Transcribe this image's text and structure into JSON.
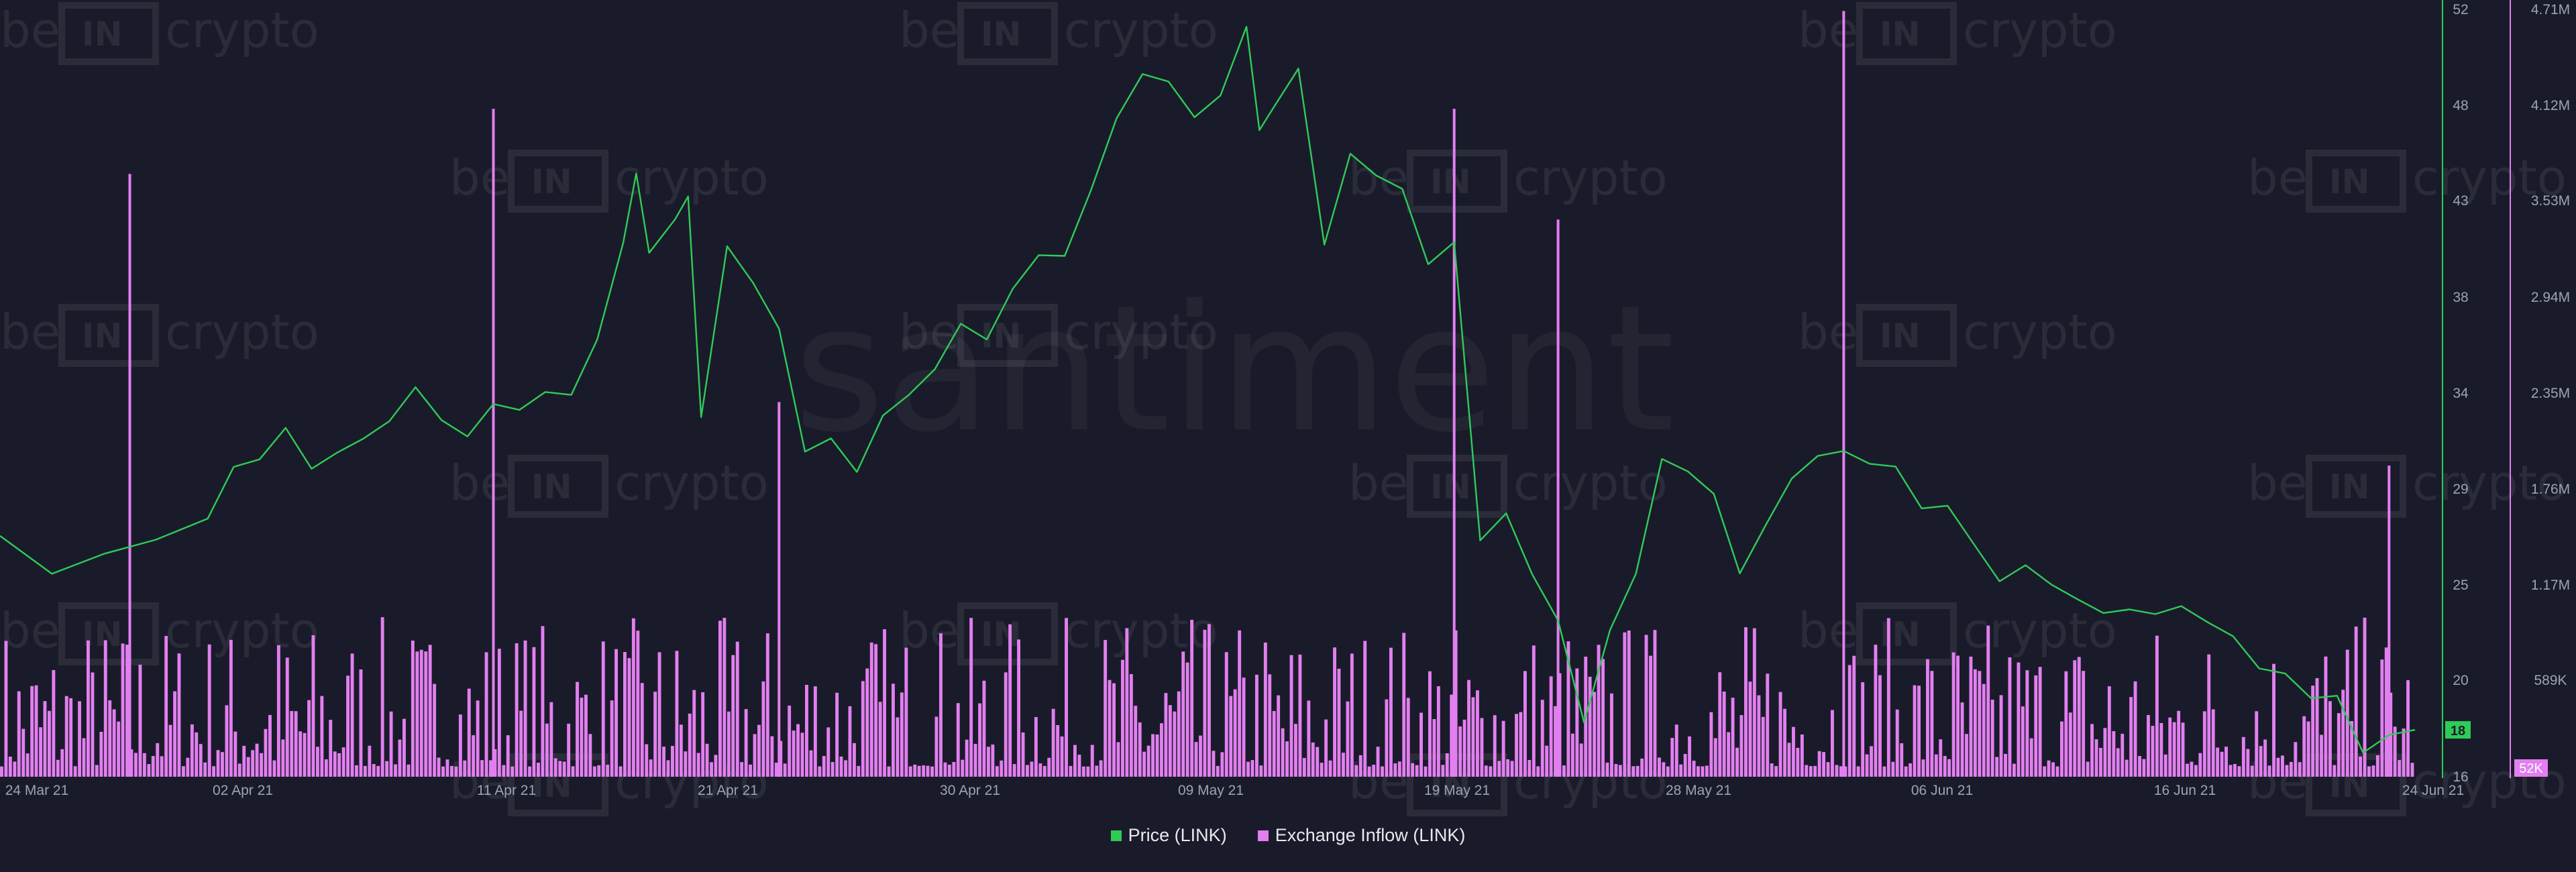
{
  "watermark": {
    "brand_left": "be",
    "brand_box": "IN",
    "brand_right": "crypto",
    "center": "santiment"
  },
  "legend": {
    "items": [
      {
        "label": "Price (LINK)",
        "color": "#2ecc57"
      },
      {
        "label": "Exchange Inflow (LINK)",
        "color": "#e27ff0"
      }
    ]
  },
  "price_axis": {
    "ticks": [
      "52",
      "48",
      "43",
      "38",
      "34",
      "29",
      "25",
      "20",
      "16"
    ],
    "current_label": "18"
  },
  "inflow_axis": {
    "ticks": [
      "4.71M",
      "4.12M",
      "3.53M",
      "2.94M",
      "2.35M",
      "1.76M",
      "1.17M",
      "589K"
    ],
    "current_label": "52K"
  },
  "chart_data": {
    "type": "line",
    "x_ticks": [
      "24 Mar 21",
      "02 Apr 21",
      "11 Apr 21",
      "21 Apr 21",
      "30 Apr 21",
      "09 May 21",
      "19 May 21",
      "28 May 21",
      "06 Jun 21",
      "16 Jun 21",
      "24 Jun 21"
    ],
    "x_range": [
      "2021-03-23",
      "2021-06-24"
    ],
    "series": [
      {
        "name": "Price (LINK)",
        "axis": "left",
        "color": "#2ecc57",
        "ylim": [
          16,
          52
        ],
        "points": [
          [
            "2021-03-23",
            27.3
          ],
          [
            "2021-03-25",
            25.6
          ],
          [
            "2021-03-27",
            26.6
          ],
          [
            "2021-03-29",
            27.3
          ],
          [
            "2021-03-31",
            28.3
          ],
          [
            "2021-04-01",
            30.7
          ],
          [
            "2021-04-02",
            31.0
          ],
          [
            "2021-04-03",
            32.4
          ],
          [
            "2021-04-04",
            30.4
          ],
          [
            "2021-04-05",
            31.1
          ],
          [
            "2021-04-06",
            31.7
          ],
          [
            "2021-04-07",
            32.5
          ],
          [
            "2021-04-08",
            34.1
          ],
          [
            "2021-04-09",
            32.6
          ],
          [
            "2021-04-10",
            31.9
          ],
          [
            "2021-04-11",
            33.5
          ],
          [
            "2021-04-12",
            33.3
          ],
          [
            "2021-04-13",
            34.2
          ],
          [
            "2021-04-14",
            34.1
          ],
          [
            "2021-04-15",
            36.7
          ],
          [
            "2021-04-16",
            41.2
          ],
          [
            "2021-04-16T12:00",
            44.4
          ],
          [
            "2021-04-17",
            40.6
          ],
          [
            "2021-04-18",
            42.1
          ],
          [
            "2021-04-18T12:00",
            43.1
          ],
          [
            "2021-04-19",
            32.7
          ],
          [
            "2021-04-20",
            40.7
          ],
          [
            "2021-04-21",
            39.0
          ],
          [
            "2021-04-22",
            36.9
          ],
          [
            "2021-04-23",
            31.2
          ],
          [
            "2021-04-24",
            31.9
          ],
          [
            "2021-04-25",
            30.4
          ],
          [
            "2021-04-26",
            33.1
          ],
          [
            "2021-04-27",
            34.1
          ],
          [
            "2021-04-28",
            35.3
          ],
          [
            "2021-04-29",
            37.4
          ],
          [
            "2021-04-30",
            36.6
          ],
          [
            "2021-05-01",
            38.9
          ],
          [
            "2021-05-02",
            40.4
          ],
          [
            "2021-05-03",
            40.3
          ],
          [
            "2021-05-04",
            43.3
          ],
          [
            "2021-05-05",
            46.7
          ],
          [
            "2021-05-06",
            48.8
          ],
          [
            "2021-05-07",
            48.5
          ],
          [
            "2021-05-08",
            46.9
          ],
          [
            "2021-05-09",
            48.0
          ],
          [
            "2021-05-10",
            51.3
          ],
          [
            "2021-05-10T12:00",
            46.5
          ],
          [
            "2021-05-11",
            47.5
          ],
          [
            "2021-05-12",
            49.4
          ],
          [
            "2021-05-13",
            41.1
          ],
          [
            "2021-05-14",
            45.3
          ],
          [
            "2021-05-15",
            44.2
          ],
          [
            "2021-05-16",
            43.5
          ],
          [
            "2021-05-17",
            39.9
          ],
          [
            "2021-05-18",
            40.9
          ],
          [
            "2021-05-19",
            26.9
          ],
          [
            "2021-05-20",
            28.2
          ],
          [
            "2021-05-21",
            25.4
          ],
          [
            "2021-05-22",
            23.3
          ],
          [
            "2021-05-23",
            18.6
          ],
          [
            "2021-05-24",
            23.0
          ],
          [
            "2021-05-25",
            25.7
          ],
          [
            "2021-05-26",
            31.1
          ],
          [
            "2021-05-27",
            30.5
          ],
          [
            "2021-05-28",
            29.4
          ],
          [
            "2021-05-29",
            25.6
          ],
          [
            "2021-05-30",
            27.8
          ],
          [
            "2021-05-31",
            29.9
          ],
          [
            "2021-06-01",
            30.9
          ],
          [
            "2021-06-02",
            31.1
          ],
          [
            "2021-06-03",
            30.5
          ],
          [
            "2021-06-04",
            30.4
          ],
          [
            "2021-06-05",
            28.5
          ],
          [
            "2021-06-06",
            28.7
          ],
          [
            "2021-06-07",
            27.0
          ],
          [
            "2021-06-08",
            25.3
          ],
          [
            "2021-06-09",
            26.1
          ],
          [
            "2021-06-10",
            25.2
          ],
          [
            "2021-06-11",
            24.5
          ],
          [
            "2021-06-12",
            23.8
          ],
          [
            "2021-06-13",
            23.9
          ],
          [
            "2021-06-14",
            23.6
          ],
          [
            "2021-06-15",
            23.9
          ],
          [
            "2021-06-16",
            23.1
          ],
          [
            "2021-06-17",
            22.4
          ],
          [
            "2021-06-18",
            20.9
          ],
          [
            "2021-06-19",
            20.7
          ],
          [
            "2021-06-20",
            19.6
          ],
          [
            "2021-06-21",
            19.8
          ],
          [
            "2021-06-22",
            17.2
          ],
          [
            "2021-06-23",
            18.1
          ],
          [
            "2021-06-24",
            18.2
          ]
        ]
      },
      {
        "name": "Exchange Inflow (LINK)",
        "axis": "right",
        "type": "bar",
        "color": "#e27ff0",
        "ylim": [
          0,
          4710000
        ],
        "spikes": [
          [
            "2021-03-28",
            3700000
          ],
          [
            "2021-04-11",
            4100000
          ],
          [
            "2021-04-22",
            2300000
          ],
          [
            "2021-05-18",
            4100000
          ],
          [
            "2021-05-22",
            3420000
          ],
          [
            "2021-06-02",
            4700000
          ],
          [
            "2021-06-23",
            1910000
          ]
        ],
        "baseline_level": 420000
      }
    ]
  }
}
